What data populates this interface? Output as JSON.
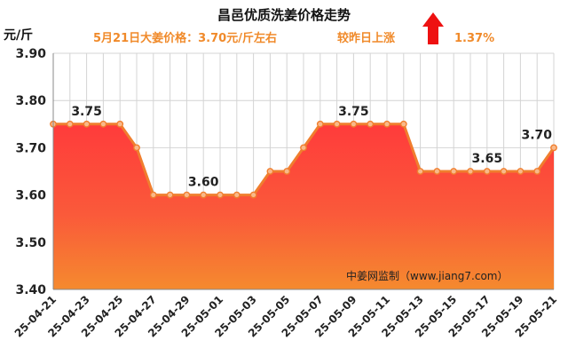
{
  "chart_data": {
    "type": "area",
    "title": "昌邑优质洗姜价格走势",
    "subtitle_price": "5月21日大姜价格：3.70元/斤左右",
    "subtitle_change_label": "较昨日上涨",
    "subtitle_change_value": "1.37%",
    "subtitle_direction": "up",
    "unit_label": "元/斤",
    "watermark": "中姜网监制（www.jiang7.com）",
    "ylim": [
      3.4,
      3.9
    ],
    "yticks": [
      "3.40",
      "3.50",
      "3.60",
      "3.70",
      "3.80",
      "3.90"
    ],
    "grid": true,
    "x": [
      "25-04-21",
      "25-04-22",
      "25-04-23",
      "25-04-24",
      "25-04-25",
      "25-04-26",
      "25-04-27",
      "25-04-28",
      "25-04-29",
      "25-04-30",
      "25-05-01",
      "25-05-02",
      "25-05-03",
      "25-05-04",
      "25-05-05",
      "25-05-06",
      "25-05-07",
      "25-05-08",
      "25-05-09",
      "25-05-10",
      "25-05-11",
      "25-05-12",
      "25-05-13",
      "25-05-14",
      "25-05-15",
      "25-05-16",
      "25-05-17",
      "25-05-18",
      "25-05-19",
      "25-05-20",
      "25-05-21"
    ],
    "xticks": [
      "25-04-21",
      "25-04-23",
      "25-04-25",
      "25-04-27",
      "25-04-29",
      "25-05-01",
      "25-05-03",
      "25-05-05",
      "25-05-07",
      "25-05-09",
      "25-05-11",
      "25-05-13",
      "25-05-15",
      "25-05-17",
      "25-05-19",
      "25-05-21"
    ],
    "values": [
      3.75,
      3.75,
      3.75,
      3.75,
      3.75,
      3.7,
      3.6,
      3.6,
      3.6,
      3.6,
      3.6,
      3.6,
      3.6,
      3.65,
      3.65,
      3.7,
      3.75,
      3.75,
      3.75,
      3.75,
      3.75,
      3.75,
      3.65,
      3.65,
      3.65,
      3.65,
      3.65,
      3.65,
      3.65,
      3.65,
      3.7
    ],
    "data_labels": [
      {
        "index": 2,
        "text": "3.75"
      },
      {
        "index": 9,
        "text": "3.60"
      },
      {
        "index": 18,
        "text": "3.75"
      },
      {
        "index": 26,
        "text": "3.65"
      },
      {
        "index": 30,
        "text": "3.70"
      }
    ],
    "colors": {
      "line": "#f07e2e",
      "marker_fill": "#f9b98a",
      "area_top": "#ff3b3b",
      "area_bottom": "#f58a2e",
      "arrow": "#ee1111",
      "subtitle": "#f08a2a"
    }
  }
}
